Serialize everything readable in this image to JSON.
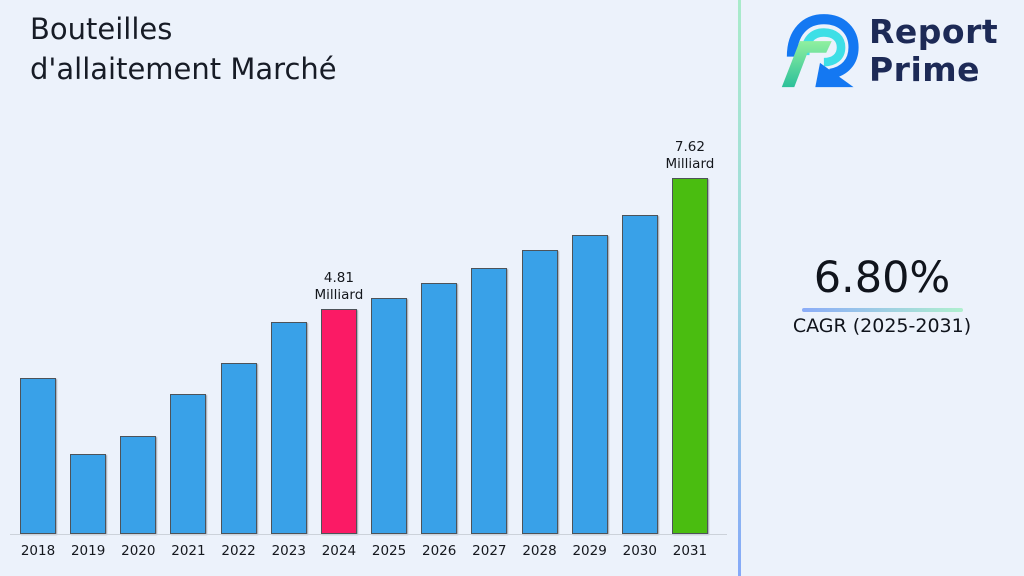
{
  "header": {
    "title_line1": "Bouteilles",
    "title_line2": "d'allaitement Marché",
    "brand_line1": "Report",
    "brand_line2": "Prime"
  },
  "sidebar": {
    "cagr_value": "6.80%",
    "cagr_label": "CAGR (2025-2031)"
  },
  "chart_data": {
    "type": "bar",
    "title": "Bouteilles d'allaitement Marché",
    "unit": "Milliard",
    "xlabel": "",
    "ylabel": "",
    "ylim": [
      0,
      8.2
    ],
    "grid": false,
    "legend": false,
    "categories": [
      "2018",
      "2019",
      "2020",
      "2021",
      "2022",
      "2023",
      "2024",
      "2025",
      "2026",
      "2027",
      "2028",
      "2029",
      "2030",
      "2031"
    ],
    "values": [
      3.34,
      1.71,
      2.1,
      3.0,
      3.66,
      4.54,
      4.81,
      5.05,
      5.37,
      5.69,
      6.08,
      6.4,
      6.83,
      7.62
    ],
    "default_color": "#39a1e8",
    "highlighted": {
      "2024": {
        "color": "#fb1a65",
        "label": "4.81 Milliard"
      },
      "2031": {
        "color": "#4abd10",
        "label": "7.62 Milliard"
      }
    }
  },
  "colors": {
    "background": "#ecf2fb",
    "bar_default": "#39a1e8",
    "bar_highlight": "#fb1a65",
    "bar_forecast": "#4abd10",
    "brand_navy": "#1d2a56",
    "divider_top": "#a9ebca",
    "divider_bottom": "#85a9f8",
    "underline_left": "#8bacf8",
    "underline_right": "#b0f0cf"
  }
}
